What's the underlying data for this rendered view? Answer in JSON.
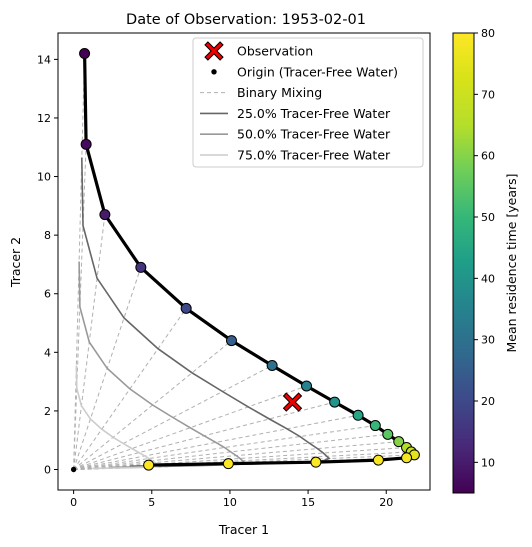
{
  "chart_data": {
    "type": "scatter",
    "title": "Date of Observation: 1953-02-01",
    "xlabel": "Tracer 1",
    "ylabel": "Tracer 2",
    "xlim": [
      -1.0,
      22.8
    ],
    "ylim": [
      -0.7,
      14.9
    ],
    "xticks": [
      0,
      5,
      10,
      15,
      20
    ],
    "yticks": [
      0,
      2,
      4,
      6,
      8,
      10,
      12,
      14
    ],
    "grid": false,
    "legend_position": "top-right",
    "colorbar": {
      "label": "Mean residence time [years]",
      "range": [
        5,
        80
      ],
      "ticks": [
        10,
        20,
        30,
        40,
        50,
        60,
        70,
        80
      ],
      "colormap": "viridis"
    },
    "legend": [
      {
        "label": "Observation",
        "style": "observation"
      },
      {
        "label": "Origin (Tracer-Free Water)",
        "style": "origin"
      },
      {
        "label": "Binary Mixing",
        "style": "dashed"
      },
      {
        "label": "25.0% Tracer-Free Water",
        "style": "line25"
      },
      {
        "label": "50.0% Tracer-Free Water",
        "style": "line50"
      },
      {
        "label": "75.0% Tracer-Free Water",
        "style": "line75"
      }
    ],
    "observation": {
      "x": 14.0,
      "y": 2.3
    },
    "origin": {
      "x": 0.0,
      "y": 0.0
    },
    "curve_points": [
      {
        "x": 0.7,
        "y": 14.2,
        "mrt": 5
      },
      {
        "x": 0.8,
        "y": 11.1,
        "mrt": 7
      },
      {
        "x": 2.0,
        "y": 8.7,
        "mrt": 10
      },
      {
        "x": 4.3,
        "y": 6.9,
        "mrt": 15
      },
      {
        "x": 7.2,
        "y": 5.5,
        "mrt": 20
      },
      {
        "x": 10.1,
        "y": 4.4,
        "mrt": 25
      },
      {
        "x": 12.7,
        "y": 3.55,
        "mrt": 30
      },
      {
        "x": 14.9,
        "y": 2.85,
        "mrt": 35
      },
      {
        "x": 16.7,
        "y": 2.3,
        "mrt": 40
      },
      {
        "x": 18.2,
        "y": 1.85,
        "mrt": 45
      },
      {
        "x": 19.3,
        "y": 1.5,
        "mrt": 50
      },
      {
        "x": 20.1,
        "y": 1.2,
        "mrt": 55
      },
      {
        "x": 20.8,
        "y": 0.95,
        "mrt": 60
      },
      {
        "x": 21.3,
        "y": 0.75,
        "mrt": 65
      },
      {
        "x": 21.6,
        "y": 0.6,
        "mrt": 70
      },
      {
        "x": 21.8,
        "y": 0.5,
        "mrt": 75
      },
      {
        "x": 21.3,
        "y": 0.4,
        "mrt": 78
      },
      {
        "x": 19.5,
        "y": 0.32,
        "mrt": 79
      },
      {
        "x": 15.5,
        "y": 0.25,
        "mrt": 79.5
      },
      {
        "x": 9.9,
        "y": 0.2,
        "mrt": 79.8
      },
      {
        "x": 4.8,
        "y": 0.15,
        "mrt": 80
      }
    ]
  }
}
